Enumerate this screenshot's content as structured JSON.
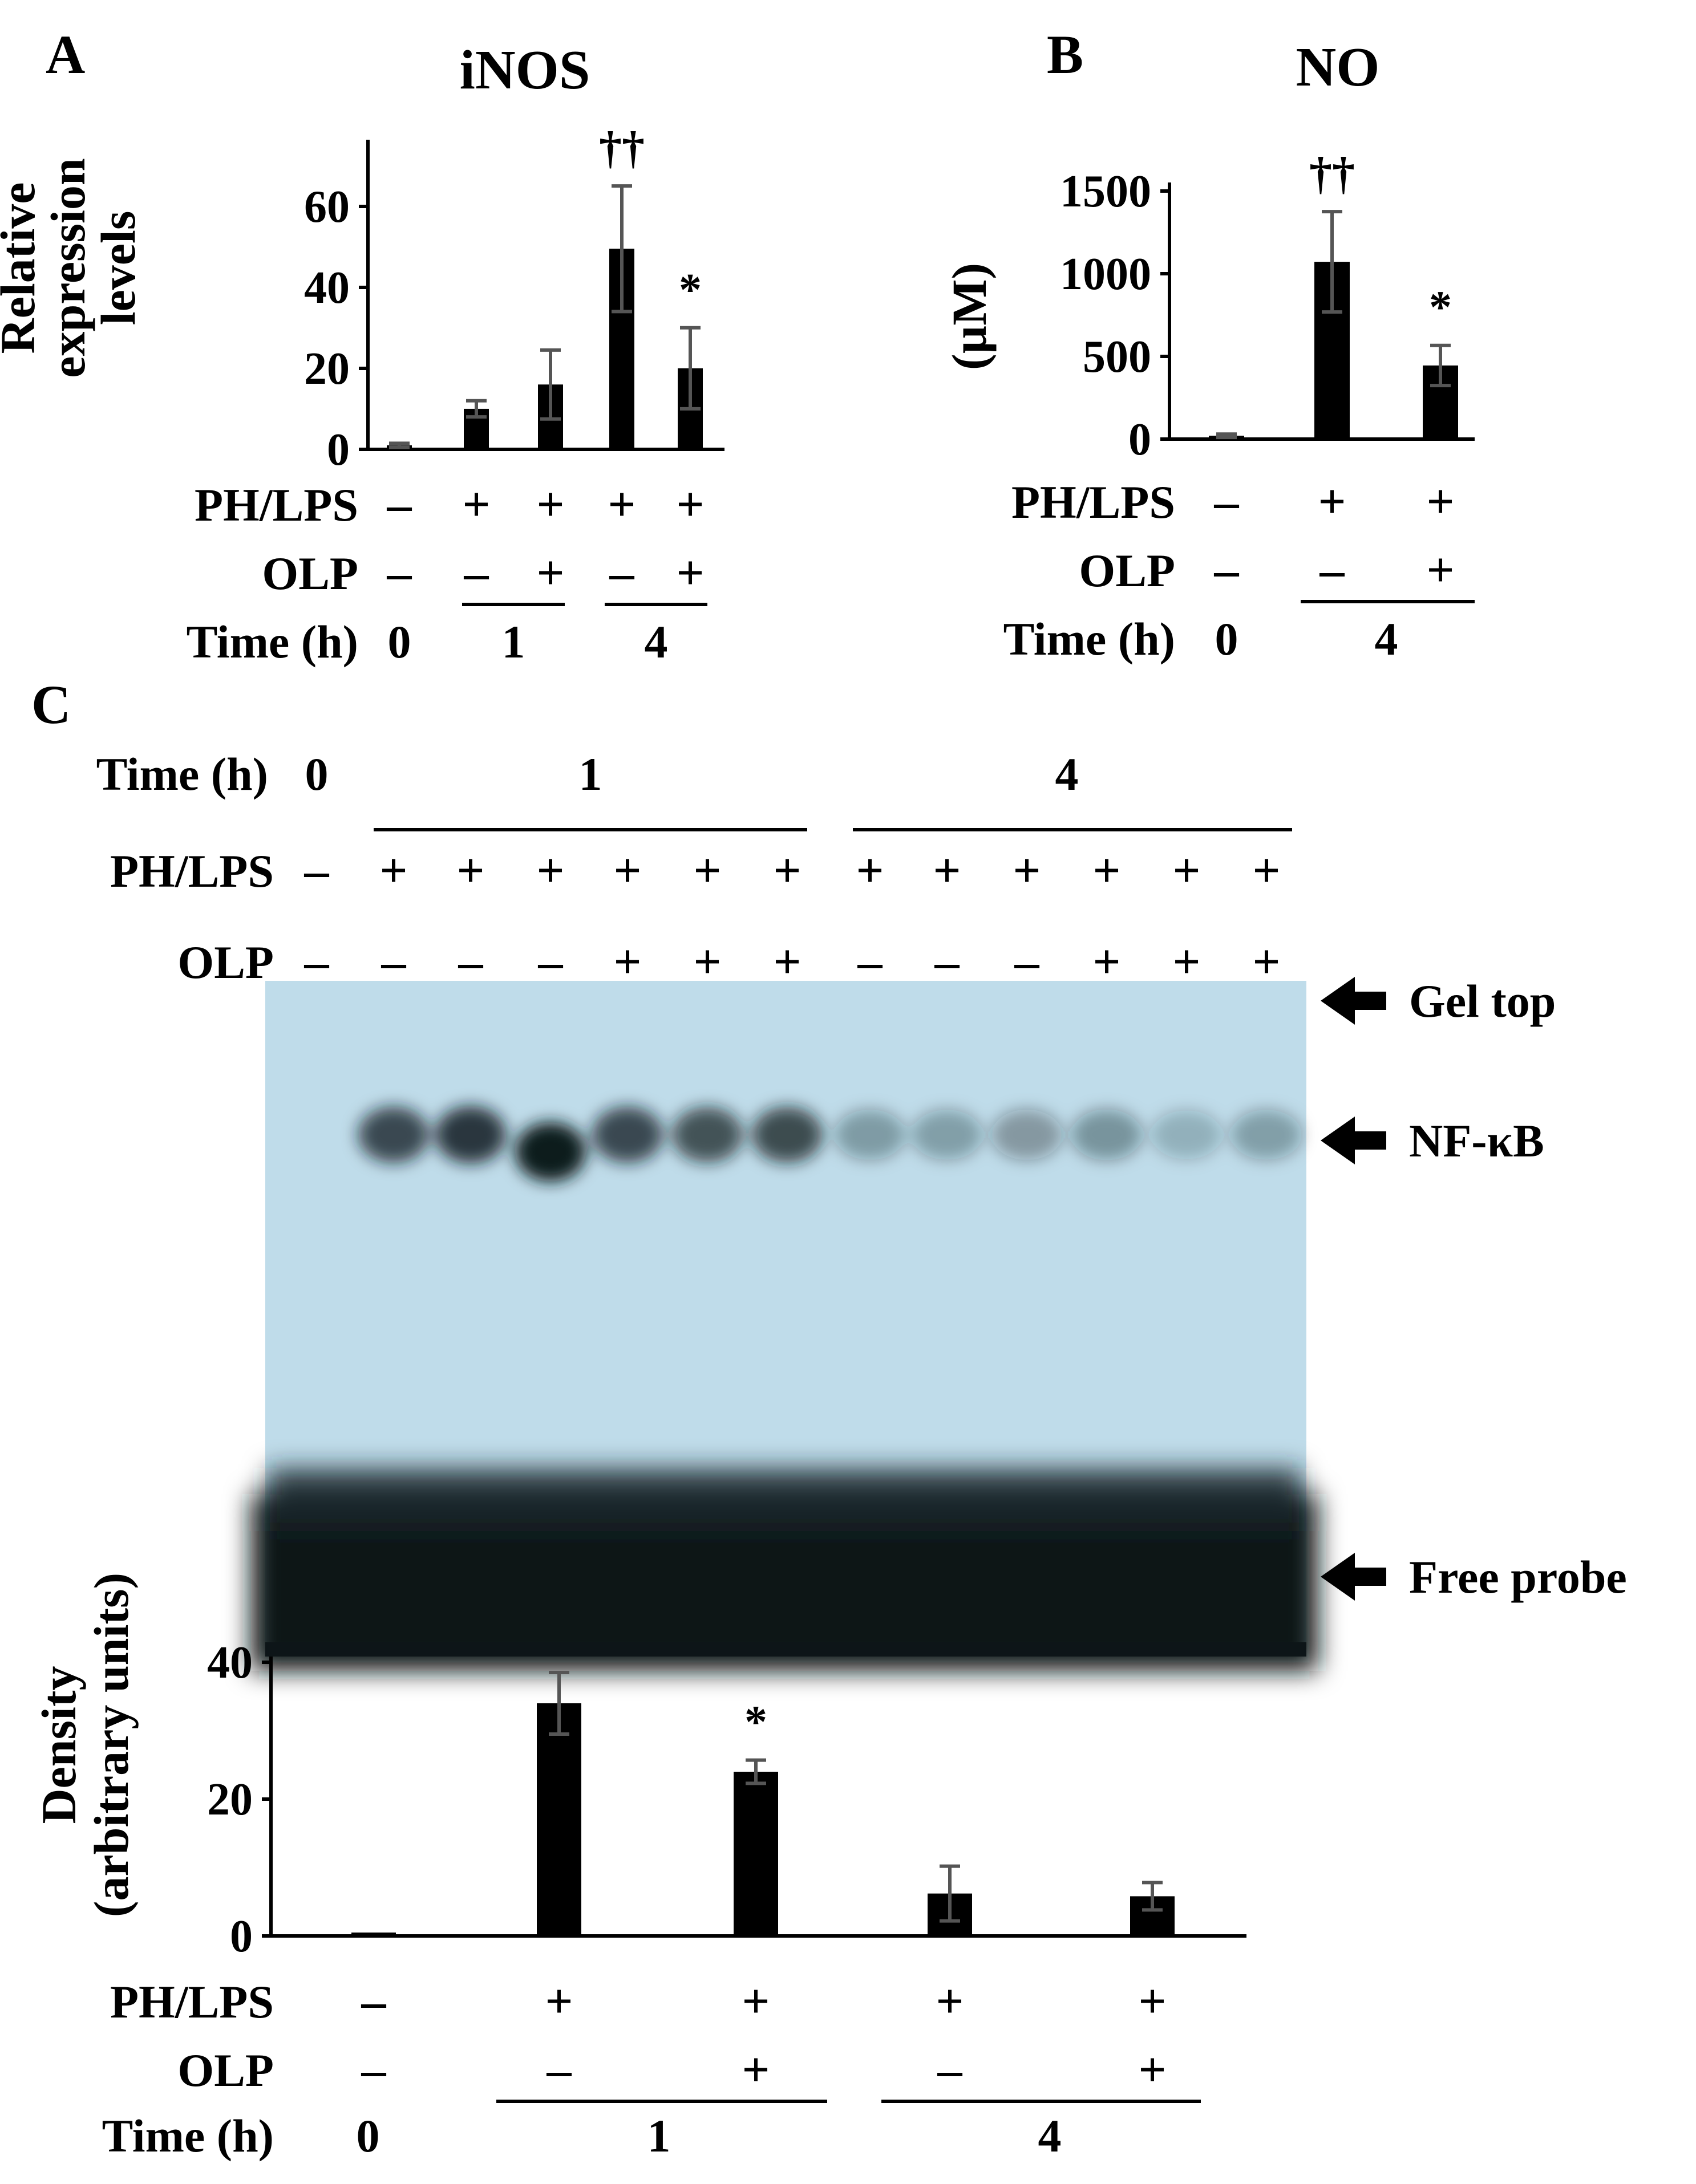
{
  "colors": {
    "bar": "#000000",
    "error_bar": "#555555",
    "gel_background": "#bfdcea",
    "gel_band": "#101a1e"
  },
  "panels": {
    "A": {
      "letter": "A",
      "title": "iNOS"
    },
    "B": {
      "letter": "B",
      "title": "NO"
    },
    "C": {
      "letter": "C",
      "gel": {
        "time_label": "Time (h)",
        "time_values": [
          "0",
          "1",
          "4"
        ],
        "ph_label": "PH/LPS",
        "ph_signs": [
          "–",
          "+",
          "+",
          "+",
          "+",
          "+",
          "+",
          "+",
          "+",
          "+",
          "+",
          "+",
          "+"
        ],
        "olp_label": "OLP",
        "olp_signs": [
          "–",
          "–",
          "–",
          "–",
          "+",
          "+",
          "+",
          "–",
          "–",
          "–",
          "+",
          "+",
          "+"
        ],
        "arrows": [
          "Gel top",
          "NF-κB",
          "Free probe"
        ],
        "nfkb_band_intensity": [
          0,
          0.72,
          0.82,
          1.0,
          0.72,
          0.66,
          0.7,
          0.22,
          0.2,
          0.24,
          0.26,
          0.1,
          0.2
        ]
      }
    }
  },
  "chart_data": [
    {
      "type": "bar",
      "panel": "A",
      "title": "iNOS",
      "ylabel": "Relative expression levels",
      "ylabel_lines": [
        "Relative",
        "expression",
        "levels"
      ],
      "ylim": [
        0,
        75
      ],
      "yticks": [
        "0",
        "20",
        "40",
        "60"
      ],
      "categories": [
        "0 h",
        "1 h PH/LPS",
        "1 h PH/LPS + OLP",
        "4 h PH/LPS",
        "4 h PH/LPS + OLP"
      ],
      "values": [
        1,
        10,
        16,
        49.5,
        20
      ],
      "errors": [
        0.5,
        2,
        8.5,
        15.5,
        10
      ],
      "annotations": [
        "",
        "",
        "",
        "††",
        "*"
      ],
      "rows": {
        "ph_label": "PH/LPS",
        "ph_signs": [
          "–",
          "+",
          "+",
          "+",
          "+"
        ],
        "olp_label": "OLP",
        "olp_signs": [
          "–",
          "–",
          "+",
          "–",
          "+"
        ],
        "time_label": "Time (h)",
        "time_values": [
          "0",
          "1",
          "4"
        ]
      }
    },
    {
      "type": "bar",
      "panel": "B",
      "title": "NO",
      "ylabel": "(µM)",
      "ylim": [
        0,
        1500
      ],
      "yticks": [
        "0",
        "500",
        "1000",
        "1500"
      ],
      "categories": [
        "0 h",
        "4 h PH/LPS",
        "4 h PH/LPS + OLP"
      ],
      "values": [
        20,
        1060,
        440
      ],
      "errors": [
        10,
        300,
        120
      ],
      "annotations": [
        "",
        "††",
        "*"
      ],
      "rows": {
        "ph_label": "PH/LPS",
        "ph_signs": [
          "–",
          "+",
          "+"
        ],
        "olp_label": "OLP",
        "olp_signs": [
          "–",
          "–",
          "+"
        ],
        "time_label": "Time (h)",
        "time_values": [
          "0",
          "4"
        ]
      }
    },
    {
      "type": "bar",
      "panel": "C",
      "ylabel": "Density (arbitrary units)",
      "ylabel_lines": [
        "Density",
        "(arbitrary units)"
      ],
      "ylim": [
        0,
        40
      ],
      "yticks": [
        "0",
        "20",
        "40"
      ],
      "categories": [
        "0 h",
        "1 h PH/LPS",
        "1 h PH/LPS + OLP",
        "4 h PH/LPS",
        "4 h PH/LPS + OLP"
      ],
      "values": [
        0.5,
        34,
        24,
        6.2,
        5.8
      ],
      "errors": [
        0,
        4.5,
        1.7,
        4,
        2
      ],
      "annotations": [
        "",
        "",
        "*",
        "",
        ""
      ],
      "rows": {
        "ph_label": "PH/LPS",
        "ph_signs": [
          "–",
          "+",
          "+",
          "+",
          "+"
        ],
        "olp_label": "OLP",
        "olp_signs": [
          "–",
          "–",
          "+",
          "–",
          "+"
        ],
        "time_label": "Time (h)",
        "time_values": [
          "0",
          "1",
          "4"
        ]
      }
    }
  ]
}
